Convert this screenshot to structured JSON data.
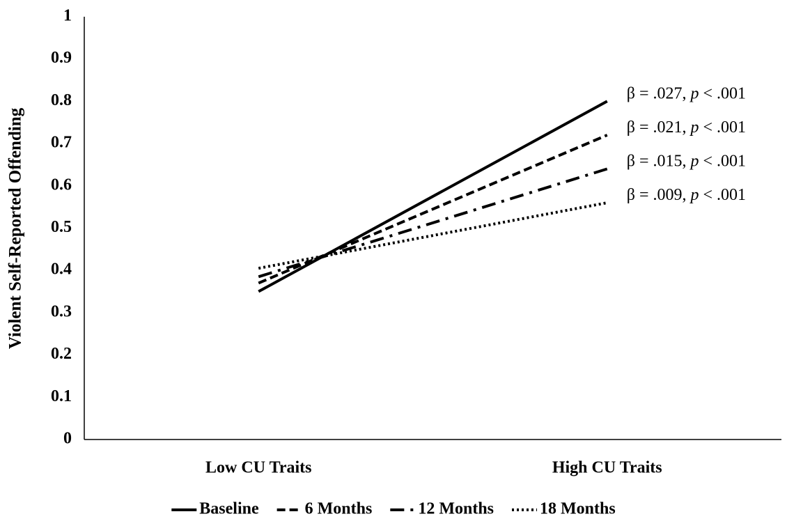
{
  "chart_data": {
    "type": "line",
    "y_label": "Violent Self-Reported Offending",
    "categories": [
      "Low CU Traits",
      "High CU Traits"
    ],
    "ylim": [
      0,
      1
    ],
    "yticks": [
      0,
      0.1,
      0.2,
      0.3,
      0.4,
      0.5,
      0.6,
      0.7,
      0.8,
      0.9,
      1
    ],
    "color": "#000000",
    "legend": "bottom",
    "series": [
      {
        "name": "Baseline",
        "dash": "solid",
        "values": [
          0.35,
          0.8
        ],
        "annotation": [
          "β = .027, ",
          "p",
          " < .001"
        ]
      },
      {
        "name": "6 Months",
        "dash": "dashed",
        "values": [
          0.37,
          0.72
        ],
        "annotation": [
          "β = .021, ",
          "p",
          " < .001"
        ]
      },
      {
        "name": "12 Months",
        "dash": "dashdot",
        "values": [
          0.385,
          0.64
        ],
        "annotation": [
          "β = .015, ",
          "p",
          " < .001"
        ]
      },
      {
        "name": "18 Months",
        "dash": "dotted",
        "values": [
          0.405,
          0.56
        ],
        "annotation": [
          "β = .009, ",
          "p",
          " < .001"
        ]
      }
    ]
  }
}
